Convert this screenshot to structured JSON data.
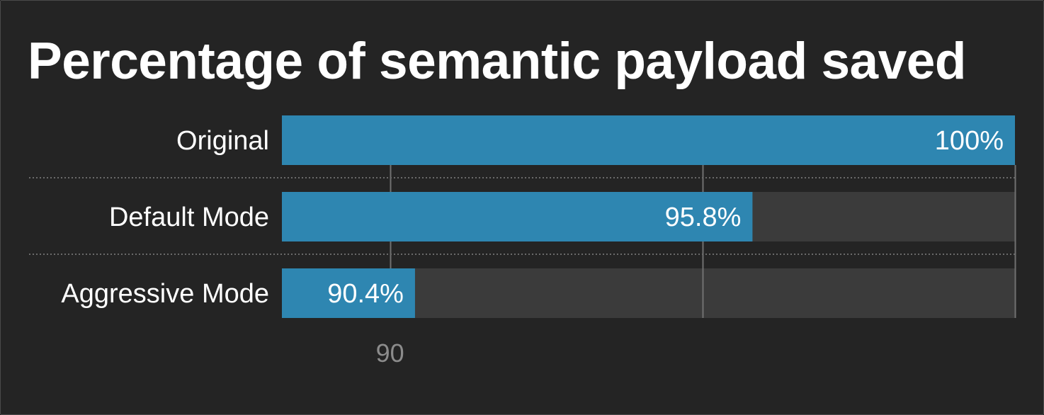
{
  "chart_data": {
    "type": "bar",
    "orientation": "horizontal",
    "title": "Percentage of semantic payload saved",
    "categories": [
      "Original",
      "Default Mode",
      "Aggressive Mode"
    ],
    "values": [
      100,
      95.8,
      90.4
    ],
    "value_labels": [
      "100%",
      "95.8%",
      "90.4%"
    ],
    "xlim": [
      0,
      100
    ],
    "xticks": [
      90
    ],
    "xtick_labels": [
      "90"
    ],
    "gridlines_at": [
      90,
      95,
      100
    ],
    "xlabel": "",
    "ylabel": "",
    "legend": "none",
    "colors": {
      "bar": "#2e86b1",
      "track": "#3b3b3b",
      "background": "#242424",
      "text": "#ffffff",
      "tick_text": "#8c8c8c",
      "grid": "#707070",
      "separator": "#6a6a6a"
    }
  }
}
